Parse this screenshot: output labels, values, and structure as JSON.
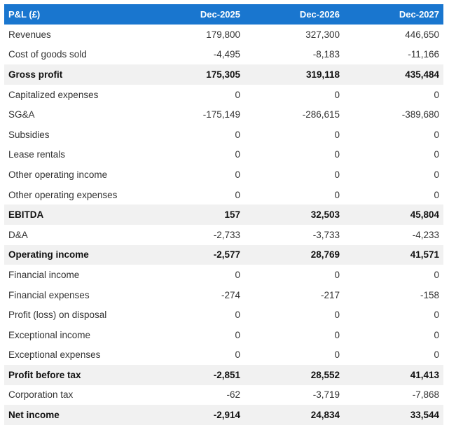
{
  "table": {
    "header": {
      "label": "P&L (£)",
      "periods": [
        "Dec-2025",
        "Dec-2026",
        "Dec-2027"
      ]
    },
    "rows": [
      {
        "label": "Revenues",
        "values": [
          "179,800",
          "327,300",
          "446,650"
        ],
        "bold": false
      },
      {
        "label": "Cost of goods sold",
        "values": [
          "-4,495",
          "-8,183",
          "-11,166"
        ],
        "bold": false
      },
      {
        "label": "Gross profit",
        "values": [
          "175,305",
          "319,118",
          "435,484"
        ],
        "bold": true
      },
      {
        "label": "Capitalized expenses",
        "values": [
          "0",
          "0",
          "0"
        ],
        "bold": false
      },
      {
        "label": "SG&A",
        "values": [
          "-175,149",
          "-286,615",
          "-389,680"
        ],
        "bold": false
      },
      {
        "label": "Subsidies",
        "values": [
          "0",
          "0",
          "0"
        ],
        "bold": false
      },
      {
        "label": "Lease rentals",
        "values": [
          "0",
          "0",
          "0"
        ],
        "bold": false
      },
      {
        "label": "Other operating income",
        "values": [
          "0",
          "0",
          "0"
        ],
        "bold": false
      },
      {
        "label": "Other operating expenses",
        "values": [
          "0",
          "0",
          "0"
        ],
        "bold": false
      },
      {
        "label": "EBITDA",
        "values": [
          "157",
          "32,503",
          "45,804"
        ],
        "bold": true
      },
      {
        "label": "D&A",
        "values": [
          "-2,733",
          "-3,733",
          "-4,233"
        ],
        "bold": false
      },
      {
        "label": "Operating income",
        "values": [
          "-2,577",
          "28,769",
          "41,571"
        ],
        "bold": true
      },
      {
        "label": "Financial income",
        "values": [
          "0",
          "0",
          "0"
        ],
        "bold": false
      },
      {
        "label": "Financial expenses",
        "values": [
          "-274",
          "-217",
          "-158"
        ],
        "bold": false
      },
      {
        "label": "Profit (loss) on disposal",
        "values": [
          "0",
          "0",
          "0"
        ],
        "bold": false
      },
      {
        "label": "Exceptional income",
        "values": [
          "0",
          "0",
          "0"
        ],
        "bold": false
      },
      {
        "label": "Exceptional expenses",
        "values": [
          "0",
          "0",
          "0"
        ],
        "bold": false
      },
      {
        "label": "Profit before tax",
        "values": [
          "-2,851",
          "28,552",
          "41,413"
        ],
        "bold": true
      },
      {
        "label": "Corporation tax",
        "values": [
          "-62",
          "-3,719",
          "-7,868"
        ],
        "bold": false
      },
      {
        "label": "Net income",
        "values": [
          "-2,914",
          "24,834",
          "33,544"
        ],
        "bold": true
      }
    ]
  },
  "colors": {
    "header_background": "#1976cf",
    "header_text": "#ffffff",
    "highlight_row": "#f1f1f1"
  }
}
